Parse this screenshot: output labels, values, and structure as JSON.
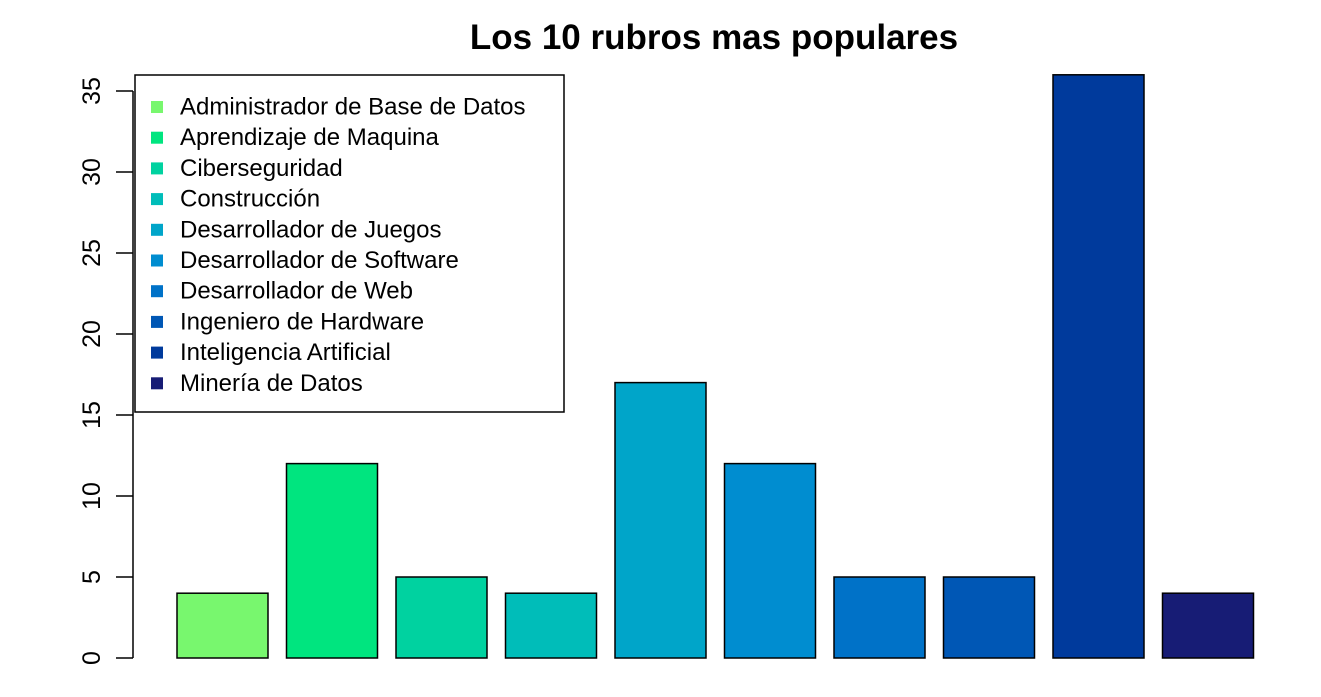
{
  "chart_data": {
    "type": "bar",
    "title": "Los 10 rubros mas populares",
    "xlabel": "",
    "ylabel": "",
    "ylim": [
      0,
      36
    ],
    "y_ticks": [
      "0",
      "5",
      "10",
      "15",
      "20",
      "25",
      "30",
      "35"
    ],
    "grid": false,
    "legend_position": "top-left",
    "categories": [
      "Administrador de Base de Datos",
      "Aprendizaje de Maquina",
      "Ciberseguridad",
      "Construcción",
      "Desarrollador de Juegos",
      "Desarrollador de Software",
      "Desarrollador de Web",
      "Ingeniero de Hardware",
      "Inteligencia Artificial",
      "Minería de Datos"
    ],
    "values": [
      4,
      12,
      5,
      4,
      17,
      12,
      5,
      5,
      36,
      4
    ],
    "colors": [
      "#78F76E",
      "#00E57F",
      "#00D2A0",
      "#00BDB9",
      "#00A5C9",
      "#008DD0",
      "#0072C8",
      "#0057B5",
      "#003A9C",
      "#171C75"
    ]
  }
}
